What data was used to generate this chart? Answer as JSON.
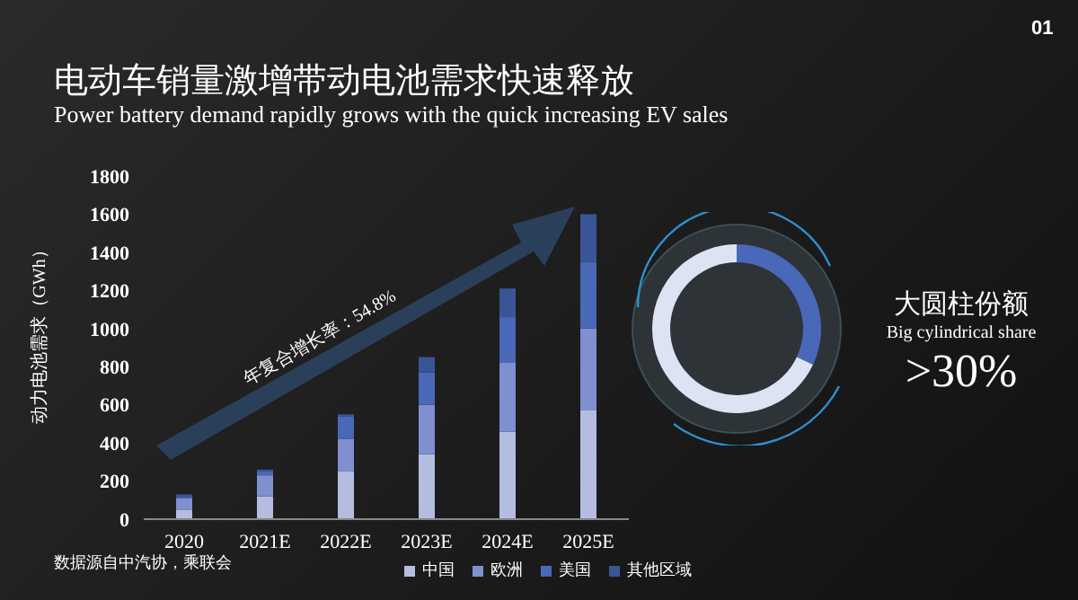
{
  "chart_data": [
    {
      "type": "bar",
      "stacked": true,
      "title": "电动车销量激增带动电池需求快速释放",
      "subtitle": "Power battery demand rapidly grows with the quick increasing EV sales",
      "ylabel": "动力电池需求（GWh）",
      "categories": [
        "2020",
        "2021E",
        "2022E",
        "2023E",
        "2024E",
        "2025E"
      ],
      "series": [
        {
          "name": "中国",
          "color": "#b4bde0",
          "values": [
            50,
            120,
            250,
            340,
            460,
            570
          ]
        },
        {
          "name": "欧洲",
          "color": "#7f8fcf",
          "values": [
            60,
            110,
            170,
            260,
            360,
            430
          ]
        },
        {
          "name": "美国",
          "color": "#4a68b8",
          "values": [
            10,
            20,
            120,
            170,
            240,
            350
          ]
        },
        {
          "name": "其他区域",
          "color": "#3a5595",
          "values": [
            10,
            10,
            10,
            80,
            150,
            250
          ]
        }
      ],
      "ylim": [
        0,
        1800
      ],
      "yticks": [
        0,
        200,
        400,
        600,
        800,
        1000,
        1200,
        1400,
        1600,
        1800
      ],
      "legend": "bottom",
      "annotations": [
        "年复合增长率：54.8%",
        "数据源自中汽协，乘联会",
        "01"
      ]
    },
    {
      "type": "donut",
      "title": "大圆柱份额",
      "subtitle": "Big cylindrical share",
      "categories": [
        null,
        null
      ],
      "values": [
        32,
        68
      ],
      "colors": [
        "#4a68b8",
        "#dde3f3"
      ],
      "annotations": [
        ">30%"
      ]
    }
  ]
}
